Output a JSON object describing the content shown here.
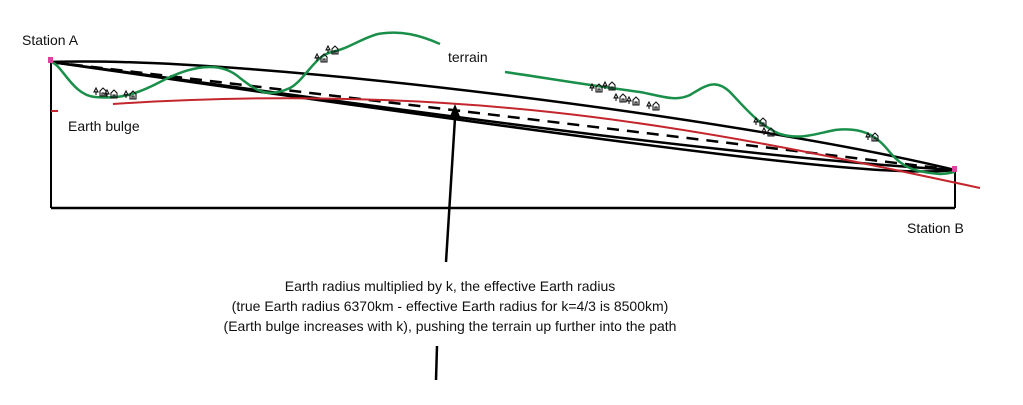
{
  "labels": {
    "station_a": "Station A",
    "station_b": "Station B",
    "terrain": "terrain",
    "earth_bulge": "Earth bulge"
  },
  "caption": {
    "line1": "Earth radius multiplied by k, the effective Earth radius",
    "line2": "(true Earth radius 6370km - effective Earth radius for k=4/3 is 8500km)",
    "line3": "(Earth bulge increases with k), pushing the terrain up further into the path"
  },
  "colors": {
    "terrain": "#1a8f4a",
    "earth_bulge": "#c4262e",
    "path": "#000000",
    "antenna": "#e040a0"
  },
  "icons": [
    "tree-house-icon"
  ]
}
